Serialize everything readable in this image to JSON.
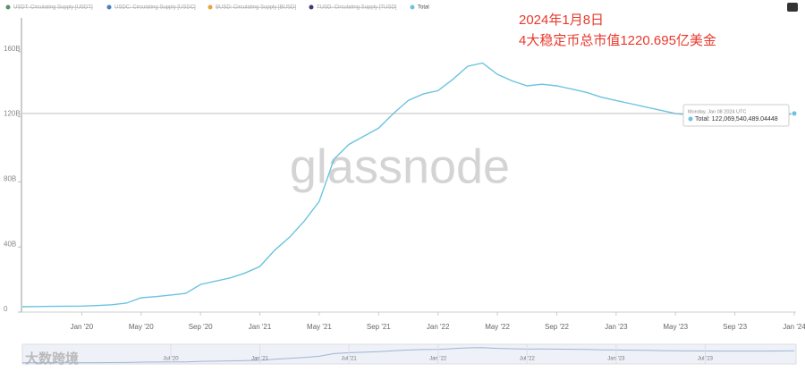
{
  "chart_data": {
    "type": "line",
    "legend": [
      {
        "name": "USDT: Circulating Supply [USDT]",
        "color": "#5e8f6e",
        "hidden": true
      },
      {
        "name": "USDC: Circulating Supply [USDC]",
        "color": "#4a7fc1",
        "hidden": true
      },
      {
        "name": "BUSD: Circulating Supply [BUSD]",
        "color": "#e8a33a",
        "hidden": true
      },
      {
        "name": "TUSD: Circulating Supply [TUSD]",
        "color": "#3d3a7a",
        "hidden": true
      },
      {
        "name": "Total",
        "color": "#6cc3e0",
        "hidden": false
      }
    ],
    "x": [
      "2019-09",
      "2019-10",
      "2019-11",
      "2019-12",
      "2020-01",
      "2020-02",
      "2020-03",
      "2020-04",
      "2020-05",
      "2020-06",
      "2020-07",
      "2020-08",
      "2020-09",
      "2020-10",
      "2020-11",
      "2020-12",
      "2021-01",
      "2021-02",
      "2021-03",
      "2021-04",
      "2021-05",
      "2021-06",
      "2021-07",
      "2021-08",
      "2021-09",
      "2021-10",
      "2021-11",
      "2021-12",
      "2022-01",
      "2022-02",
      "2022-03",
      "2022-04",
      "2022-05",
      "2022-06",
      "2022-07",
      "2022-08",
      "2022-09",
      "2022-10",
      "2022-11",
      "2022-12",
      "2023-01",
      "2023-02",
      "2023-03",
      "2023-04",
      "2023-05",
      "2023-06",
      "2023-07",
      "2023-08",
      "2023-09",
      "2023-10",
      "2023-11",
      "2023-12",
      "2024-01"
    ],
    "series": [
      {
        "name": "Total",
        "color": "#6cc3e0",
        "values": [
          3.3,
          3.4,
          3.5,
          3.6,
          3.7,
          4,
          4.5,
          5.5,
          8.8,
          9.5,
          10.5,
          11.5,
          17,
          19,
          21,
          24,
          28,
          38,
          46,
          56,
          68,
          94,
          103,
          108,
          113,
          122,
          130,
          134,
          136,
          143,
          151,
          153,
          146,
          142,
          139,
          140,
          139,
          137,
          135,
          132,
          130,
          128,
          126,
          124,
          122,
          121,
          120,
          119.5,
          119.5,
          119,
          119.5,
          120.5,
          122
        ]
      }
    ],
    "xlim": [
      "2019-09",
      "2024-01"
    ],
    "xticks": [
      {
        "value": "2020-01",
        "label": "Jan '20"
      },
      {
        "value": "2020-05",
        "label": "May '20"
      },
      {
        "value": "2020-09",
        "label": "Sep '20"
      },
      {
        "value": "2021-01",
        "label": "Jan '21"
      },
      {
        "value": "2021-05",
        "label": "May '21"
      },
      {
        "value": "2021-09",
        "label": "Sep '21"
      },
      {
        "value": "2022-01",
        "label": "Jan '22"
      },
      {
        "value": "2022-05",
        "label": "May '22"
      },
      {
        "value": "2022-09",
        "label": "Sep '22"
      },
      {
        "value": "2023-01",
        "label": "Jan '23"
      },
      {
        "value": "2023-05",
        "label": "May '23"
      },
      {
        "value": "2023-09",
        "label": "Sep '23"
      },
      {
        "value": "2024-01",
        "label": "Jan '24"
      }
    ],
    "ylim": [
      0,
      178
    ],
    "yticks": [
      0,
      {
        "value": 40,
        "label": "40B"
      },
      {
        "value": 80,
        "label": "80B"
      },
      {
        "value": 120,
        "label": "120B"
      },
      {
        "value": 160,
        "label": "160B"
      }
    ],
    "navigator_ticks": [
      {
        "value": "2020-07",
        "label": "Jul '20"
      },
      {
        "value": "2021-01",
        "label": "Jan '21"
      },
      {
        "value": "2021-07",
        "label": "Jul '21"
      },
      {
        "value": "2022-01",
        "label": "Jan '22"
      },
      {
        "value": "2022-07",
        "label": "Jul '22"
      },
      {
        "value": "2023-01",
        "label": "Jan '23"
      },
      {
        "value": "2023-07",
        "label": "Jul '23"
      }
    ],
    "annotation": [
      "2024年1月8日",
      "4大稳定币总市值1220.695亿美金"
    ],
    "tooltip": {
      "date": "Monday, Jan 08 2024 UTC",
      "text": "Total: 122,069,540,489.04448"
    },
    "watermark": "glassnode",
    "source_mark": "大数跨境"
  }
}
